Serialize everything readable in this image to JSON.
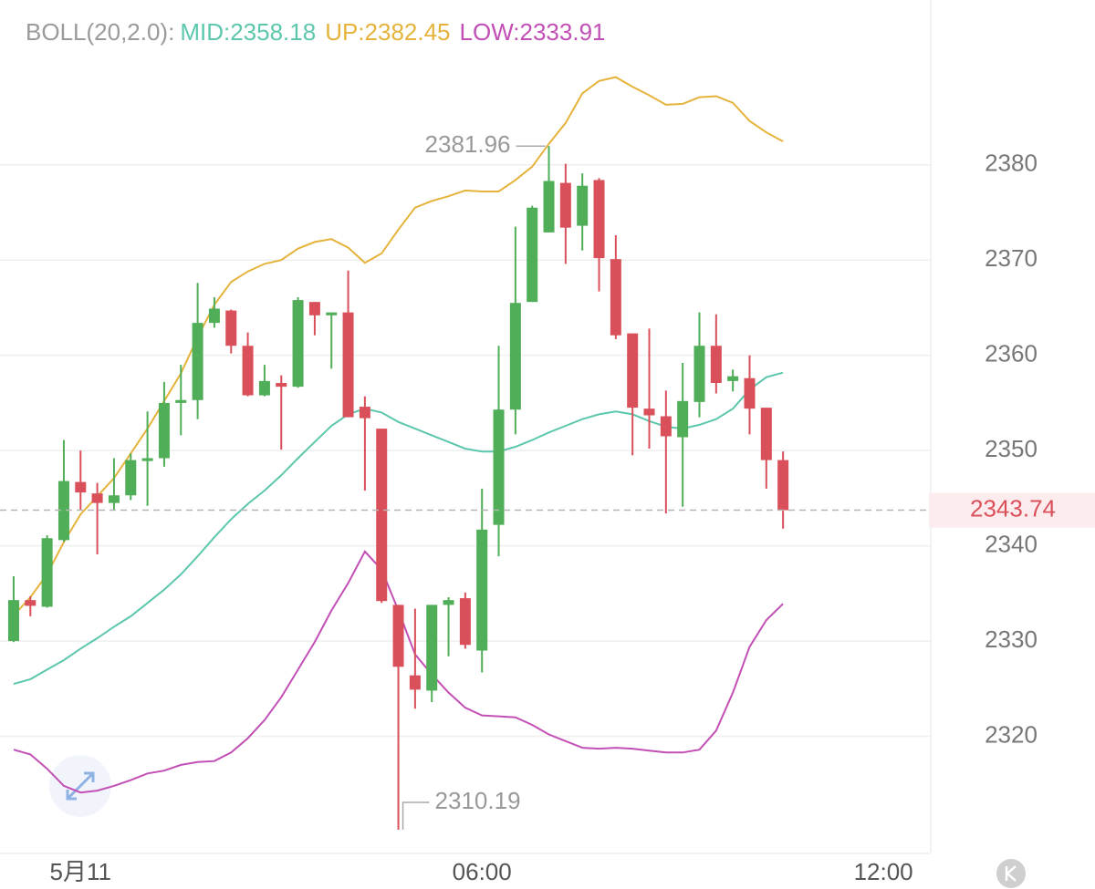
{
  "chart_data": {
    "type": "candlestick",
    "indicator": "BOLL(20,2.0):",
    "categories": [
      null,
      null,
      null,
      null,
      "5月11",
      null,
      null,
      null,
      null,
      null,
      null,
      null,
      null,
      null,
      null,
      null,
      null,
      null,
      null,
      null,
      null,
      null,
      null,
      null,
      null,
      null,
      null,
      null,
      "06:00",
      null,
      null,
      null,
      null,
      null,
      null,
      null,
      null,
      null,
      null,
      null,
      null,
      null,
      null,
      null,
      null,
      null,
      null,
      null,
      null,
      null,
      null,
      null,
      "12:00",
      null,
      null
    ],
    "open": [
      2330.0,
      2334.3,
      2333.6,
      2340.6,
      2346.7,
      2345.5,
      2344.5,
      2345.3,
      2348.9,
      2349.2,
      2355.0,
      2355.3,
      2363.4,
      2364.7,
      2361.0,
      2355.8,
      2357.1,
      2356.7,
      2365.6,
      2364.2,
      2364.5,
      2354.6,
      2352.3,
      2333.8,
      2326.4,
      2324.8,
      2333.8,
      2334.5,
      2329.0,
      2342.2,
      2354.3,
      2365.6,
      2372.9,
      2378.1,
      2373.6,
      2378.4,
      2370.1,
      2362.3,
      2354.4,
      2353.6,
      2351.4,
      2355.1,
      2361.0,
      2357.3,
      2357.6,
      2354.5,
      2349.0,
      null,
      null,
      null,
      null,
      null,
      null,
      null,
      null
    ],
    "high": [
      2336.8,
      2334.7,
      2341.1,
      2351.1,
      2350.0,
      2346.6,
      2349.2,
      2349.7,
      2354.1,
      2357.2,
      2359.0,
      2367.6,
      2366.1,
      2364.8,
      2362.4,
      2359.0,
      2357.9,
      2366.1,
      2365.6,
      2364.5,
      2368.9,
      2355.7,
      2352.3,
      2333.8,
      2333.4,
      2333.8,
      2334.6,
      2335.1,
      2346.0,
      2361.0,
      2373.5,
      2375.7,
      2381.96,
      2380.1,
      2379.1,
      2378.6,
      2372.6,
      2362.3,
      2362.8,
      2356.3,
      2359.2,
      2364.5,
      2364.3,
      2358.5,
      2360.0,
      2354.5,
      2349.9,
      null,
      null,
      null,
      null,
      null,
      null,
      null,
      null
    ],
    "low": [
      2329.9,
      2332.6,
      2333.5,
      2340.4,
      2343.7,
      2339.1,
      2343.7,
      2344.8,
      2344.2,
      2348.3,
      2351.6,
      2353.3,
      2362.9,
      2360.2,
      2355.7,
      2355.7,
      2350.1,
      2356.6,
      2362.1,
      2358.6,
      2353.5,
      2345.8,
      2334.0,
      2310.19,
      2322.9,
      2323.6,
      2328.4,
      2329.2,
      2326.7,
      2338.9,
      2351.7,
      2365.6,
      2372.9,
      2369.6,
      2371.0,
      2366.7,
      2361.7,
      2349.5,
      2350.2,
      2343.4,
      2344.1,
      2353.5,
      2356.0,
      2356.2,
      2351.7,
      2346.0,
      2341.8,
      null,
      null,
      null,
      null,
      null,
      null,
      null,
      null
    ],
    "close": [
      2334.3,
      2333.7,
      2340.8,
      2346.8,
      2345.6,
      2344.5,
      2345.3,
      2349.0,
      2349.2,
      2355.0,
      2355.3,
      2363.4,
      2364.9,
      2361.0,
      2355.8,
      2357.3,
      2356.7,
      2365.8,
      2364.2,
      2364.5,
      2353.5,
      2353.4,
      2334.2,
      2327.3,
      2324.9,
      2333.8,
      2334.3,
      2329.6,
      2341.7,
      2354.3,
      2365.5,
      2375.5,
      2378.3,
      2373.4,
      2377.8,
      2370.2,
      2362.1,
      2354.5,
      2353.7,
      2351.5,
      2355.2,
      2361.0,
      2357.1,
      2357.8,
      2354.4,
      2349.0,
      2343.74,
      null,
      null,
      null,
      null,
      null,
      null,
      null,
      null
    ],
    "up_color": "#4fae57",
    "down_color": "#d9505a",
    "series": [
      {
        "name": "MID:",
        "color": "#5cc7ad",
        "values": [
          2325.5,
          2326.0,
          2327.0,
          2328.0,
          2329.2,
          2330.3,
          2331.5,
          2332.6,
          2334.0,
          2335.4,
          2337.0,
          2338.9,
          2340.9,
          2342.8,
          2344.4,
          2345.8,
          2347.4,
          2349.2,
          2350.9,
          2352.6,
          2353.8,
          2354.4,
          2354.0,
          2353.0,
          2352.3,
          2351.6,
          2350.9,
          2350.2,
          2349.9,
          2349.9,
          2350.4,
          2351.1,
          2351.9,
          2352.6,
          2353.3,
          2353.8,
          2354.1,
          2353.8,
          2353.1,
          2352.5,
          2352.3,
          2352.7,
          2353.3,
          2354.4,
          2356.4,
          2357.7,
          2358.18,
          null,
          null,
          null,
          null,
          null,
          null,
          null,
          null
        ]
      },
      {
        "name": "UP:",
        "color": "#e5b33b",
        "values": [
          2332.7,
          2334.6,
          2337.0,
          2340.4,
          2343.3,
          2345.2,
          2347.1,
          2349.7,
          2352.3,
          2355.2,
          2358.1,
          2361.9,
          2365.3,
          2367.7,
          2368.8,
          2369.6,
          2370.0,
          2371.2,
          2371.9,
          2372.2,
          2371.3,
          2369.7,
          2370.7,
          2373.2,
          2375.5,
          2376.2,
          2376.7,
          2377.3,
          2377.2,
          2377.2,
          2378.4,
          2379.8,
          2382.2,
          2384.4,
          2387.5,
          2388.8,
          2389.2,
          2388.2,
          2387.3,
          2386.3,
          2386.4,
          2387.1,
          2387.2,
          2386.5,
          2384.6,
          2383.4,
          2382.45,
          null,
          null,
          null,
          null,
          null,
          null,
          null,
          null
        ]
      },
      {
        "name": "LOW:",
        "color": "#c24fb5",
        "values": [
          2318.6,
          2318.1,
          2316.6,
          2314.8,
          2314.1,
          2314.3,
          2314.8,
          2315.4,
          2316.1,
          2316.4,
          2317.0,
          2317.3,
          2317.4,
          2318.3,
          2319.8,
          2321.7,
          2324.1,
          2327.0,
          2329.9,
          2333.2,
          2336.1,
          2339.4,
          2337.5,
          2333.2,
          2328.6,
          2326.5,
          2324.6,
          2323.0,
          2322.2,
          2322.1,
          2322.0,
          2321.2,
          2320.2,
          2319.5,
          2318.8,
          2318.7,
          2318.8,
          2318.7,
          2318.5,
          2318.3,
          2318.3,
          2318.6,
          2320.6,
          2324.6,
          2329.4,
          2332.2,
          2333.91,
          null,
          null,
          null,
          null,
          null,
          null,
          null,
          null
        ]
      }
    ],
    "ylim": [
      2307.8,
      2397.3
    ],
    "yticks": [
      2320,
      2330,
      2340,
      2350,
      2360,
      2370,
      2380
    ],
    "grid": true
  }
}
